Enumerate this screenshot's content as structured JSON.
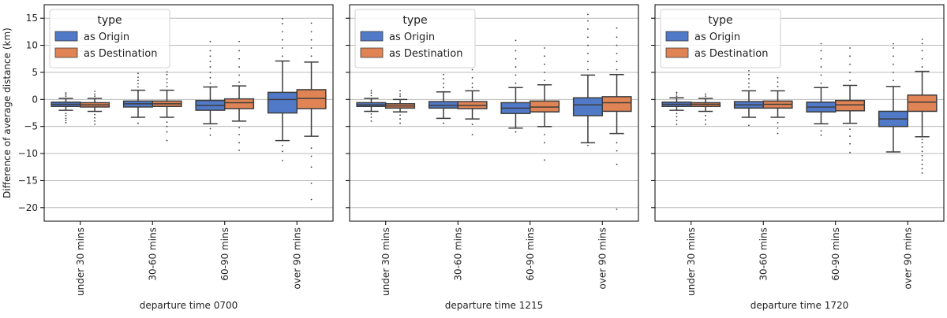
{
  "chart_data": {
    "type": "box",
    "shared_y_label": "Difference of average distance (km)",
    "ylim": [
      -22.5,
      17.5
    ],
    "yticks": [
      -20,
      -15,
      -10,
      -5,
      0,
      5,
      10,
      15
    ],
    "ytick_labels": [
      "−20",
      "−15",
      "−10",
      "−5",
      "0",
      "5",
      "10",
      "15"
    ],
    "grid": "horizontal",
    "categories": [
      "under 30 mins",
      "30-60 mins",
      "60-90 mins",
      "over 90 mins"
    ],
    "legend": {
      "title": "type",
      "position": "upper-left",
      "entries": [
        "as Origin",
        "as Destination"
      ]
    },
    "series_colors": {
      "as Origin": "#5079c8",
      "as Destination": "#e08455"
    },
    "panels": [
      {
        "xlabel": "departure time 0700",
        "series": [
          {
            "name": "as Origin",
            "boxes": [
              {
                "whisker_low": -2.0,
                "q1": -1.3,
                "median": -0.9,
                "q3": -0.5,
                "whisker_high": 0.2,
                "fliers": [
                  -4.3,
                  -3.9,
                  -3.5,
                  -3.0,
                  -2.6,
                  0.6,
                  0.9,
                  1.2
                ]
              },
              {
                "whisker_low": -3.3,
                "q1": -1.4,
                "median": -0.8,
                "q3": -0.3,
                "whisker_high": 1.7,
                "fliers": [
                  -4.4,
                  2.3,
                  2.9,
                  3.5,
                  4.1,
                  4.8
                ]
              },
              {
                "whisker_low": -4.5,
                "q1": -2.0,
                "median": -1.1,
                "q3": -0.2,
                "whisker_high": 2.3,
                "fliers": [
                  -6.6,
                  -5.4,
                  3.0,
                  4.0,
                  5.0,
                  6.0,
                  7.0,
                  8.0,
                  9.0,
                  10.7
                ]
              },
              {
                "whisker_low": -7.6,
                "q1": -2.5,
                "median": 0.0,
                "q3": 1.3,
                "whisker_high": 7.1,
                "fliers": [
                  -11.3,
                  -9.6,
                  -8.5,
                  8.0,
                  9.5,
                  11.0,
                  12.5,
                  14.0,
                  14.9
                ]
              }
            ]
          },
          {
            "name": "as Destination",
            "boxes": [
              {
                "whisker_low": -2.2,
                "q1": -1.4,
                "median": -1.0,
                "q3": -0.6,
                "whisker_high": 0.2,
                "fliers": [
                  -4.6,
                  -4.0,
                  -3.4,
                  -2.8,
                  0.6,
                  1.0,
                  1.5
                ]
              },
              {
                "whisker_low": -3.3,
                "q1": -1.3,
                "median": -0.8,
                "q3": -0.3,
                "whisker_high": 1.7,
                "fliers": [
                  -7.6,
                  -6.0,
                  -5.0,
                  -4.2,
                  2.4,
                  3.1,
                  3.8,
                  4.6,
                  5.1
                ]
              },
              {
                "whisker_low": -4.0,
                "q1": -1.7,
                "median": -0.6,
                "q3": 0.1,
                "whisker_high": 2.5,
                "fliers": [
                  -9.4,
                  -8.0,
                  -6.5,
                  -5.2,
                  3.2,
                  4.5,
                  6.0,
                  7.5,
                  9.0,
                  10.7
                ]
              },
              {
                "whisker_low": -6.8,
                "q1": -1.7,
                "median": 0.2,
                "q3": 1.8,
                "whisker_high": 6.9,
                "fliers": [
                  -18.5,
                  -15.5,
                  -12.5,
                  -10.5,
                  -9.0,
                  8.0,
                  9.5,
                  11.0,
                  12.5,
                  14.1
                ]
              }
            ]
          }
        ]
      },
      {
        "xlabel": "departure time 1215",
        "series": [
          {
            "name": "as Origin",
            "boxes": [
              {
                "whisker_low": -2.2,
                "q1": -1.3,
                "median": -1.0,
                "q3": -0.6,
                "whisker_high": 0.2,
                "fliers": [
                  -4.0,
                  -3.3,
                  -2.7,
                  0.7,
                  1.2,
                  1.6
                ]
              },
              {
                "whisker_low": -3.5,
                "q1": -1.6,
                "median": -1.1,
                "q3": -0.4,
                "whisker_high": 1.4,
                "fliers": [
                  -4.4,
                  2.2,
                  3.0,
                  3.8,
                  4.6
                ]
              },
              {
                "whisker_low": -5.3,
                "q1": -2.6,
                "median": -1.6,
                "q3": -0.6,
                "whisker_high": 2.2,
                "fliers": [
                  -6.0,
                  3.0,
                  4.5,
                  6.0,
                  7.5,
                  9.0,
                  10.9
                ]
              },
              {
                "whisker_low": -8.0,
                "q1": -3.0,
                "median": -1.0,
                "q3": 0.3,
                "whisker_high": 4.5,
                "fliers": [
                  -8.5,
                  5.5,
                  7.0,
                  8.5,
                  10.0,
                  11.5,
                  13.0,
                  14.5,
                  15.7
                ]
              }
            ]
          },
          {
            "name": "as Destination",
            "boxes": [
              {
                "whisker_low": -2.3,
                "q1": -1.6,
                "median": -1.2,
                "q3": -0.8,
                "whisker_high": 0.0,
                "fliers": [
                  -4.4,
                  -3.6,
                  -2.9,
                  0.6,
                  1.0,
                  1.6
                ]
              },
              {
                "whisker_low": -3.6,
                "q1": -1.7,
                "median": -1.1,
                "q3": -0.4,
                "whisker_high": 1.6,
                "fliers": [
                  -6.5,
                  -4.6,
                  2.2,
                  3.0,
                  4.0,
                  5.5
                ]
              },
              {
                "whisker_low": -5.0,
                "q1": -2.3,
                "median": -1.4,
                "q3": -0.3,
                "whisker_high": 2.7,
                "fliers": [
                  -11.2,
                  -8.0,
                  -6.5,
                  3.5,
                  5.0,
                  6.5,
                  8.0,
                  9.5
                ]
              },
              {
                "whisker_low": -6.3,
                "q1": -2.2,
                "median": -0.6,
                "q3": 0.5,
                "whisker_high": 4.6,
                "fliers": [
                  -20.3,
                  -12.0,
                  -9.5,
                  -8.0,
                  5.5,
                  7.0,
                  8.5,
                  10.0,
                  11.5,
                  13.2
                ]
              }
            ]
          }
        ]
      },
      {
        "xlabel": "departure time 1720",
        "series": [
          {
            "name": "as Origin",
            "boxes": [
              {
                "whisker_low": -2.0,
                "q1": -1.3,
                "median": -0.9,
                "q3": -0.5,
                "whisker_high": 0.3,
                "fliers": [
                  -4.6,
                  -3.9,
                  -3.2,
                  -2.6,
                  0.6,
                  1.0,
                  1.3
                ]
              },
              {
                "whisker_low": -3.3,
                "q1": -1.6,
                "median": -1.0,
                "q3": -0.4,
                "whisker_high": 1.6,
                "fliers": [
                  -4.8,
                  2.3,
                  3.0,
                  3.8,
                  4.6,
                  5.3
                ]
              },
              {
                "whisker_low": -4.5,
                "q1": -2.3,
                "median": -1.4,
                "q3": -0.5,
                "whisker_high": 2.2,
                "fliers": [
                  -6.6,
                  -5.8,
                  3.0,
                  4.5,
                  6.0,
                  7.5,
                  9.0,
                  10.3
                ]
              },
              {
                "whisker_low": -9.7,
                "q1": -5.0,
                "median": -3.6,
                "q3": -2.2,
                "whisker_high": 2.4,
                "fliers": [
                  3.5,
                  5.0,
                  6.5,
                  8.0,
                  9.5,
                  10.3
                ]
              }
            ]
          },
          {
            "name": "as Destination",
            "boxes": [
              {
                "whisker_low": -2.2,
                "q1": -1.3,
                "median": -0.9,
                "q3": -0.6,
                "whisker_high": 0.2,
                "fliers": [
                  -4.6,
                  -3.8,
                  -3.0,
                  0.6,
                  1.0
                ]
              },
              {
                "whisker_low": -3.3,
                "q1": -1.6,
                "median": -0.9,
                "q3": -0.3,
                "whisker_high": 1.6,
                "fliers": [
                  -6.3,
                  -5.3,
                  -4.3,
                  2.4,
                  3.2,
                  4.0
                ]
              },
              {
                "whisker_low": -4.4,
                "q1": -2.1,
                "median": -1.0,
                "q3": -0.2,
                "whisker_high": 2.6,
                "fliers": [
                  -9.8,
                  -8.2,
                  -6.8,
                  -5.5,
                  3.5,
                  5.0,
                  6.5,
                  8.0,
                  9.5
                ]
              },
              {
                "whisker_low": -6.9,
                "q1": -2.2,
                "median": -0.5,
                "q3": 0.8,
                "whisker_high": 5.2,
                "fliers": [
                  -13.6,
                  -12.8,
                  -12.0,
                  -11.2,
                  -10.4,
                  -9.6,
                  -8.8,
                  -8.0,
                  -7.4,
                  6.0,
                  7.5,
                  9.0,
                  10.3,
                  11.1
                ]
              }
            ]
          }
        ]
      }
    ]
  }
}
